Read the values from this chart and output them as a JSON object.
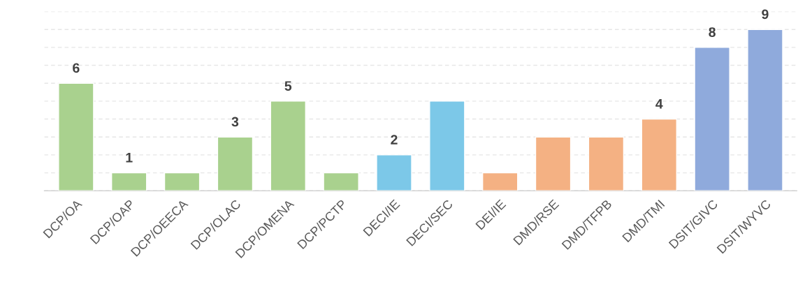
{
  "chart_data": {
    "type": "bar",
    "categories": [
      "DCP/OA",
      "DCP/OAP",
      "DCP/OEECA",
      "DCP/OLAC",
      "DCP/OMENA",
      "DCP/PCTP",
      "DECI/IE",
      "DECI/SEC",
      "DEI/IE",
      "DMD/RSE",
      "DMD/TFPB",
      "DMD/TMI",
      "DSIT/GIVC",
      "DSIT/WYVC"
    ],
    "values": [
      6,
      1,
      1,
      3,
      5,
      1,
      2,
      5,
      1,
      3,
      3,
      4,
      8,
      9
    ],
    "value_labels": [
      "6",
      "1",
      null,
      "3",
      "5",
      null,
      "2",
      null,
      null,
      null,
      null,
      "4",
      "8",
      "9"
    ],
    "colors": [
      "#a9d18e",
      "#a9d18e",
      "#a9d18e",
      "#a9d18e",
      "#a9d18e",
      "#a9d18e",
      "#7cc8e8",
      "#7cc8e8",
      "#f4b183",
      "#f4b183",
      "#f4b183",
      "#f4b183",
      "#8faadc",
      "#8faadc"
    ],
    "ylim": [
      0,
      10
    ],
    "yticks": [
      {
        "value": 0,
        "label": null
      },
      {
        "value": 1,
        "label": null
      },
      {
        "value": 2,
        "label": null
      },
      {
        "value": 3,
        "label": null
      },
      {
        "value": 4,
        "label": null
      },
      {
        "value": 5,
        "label": null
      },
      {
        "value": 6,
        "label": null
      },
      {
        "value": 7,
        "label": null
      },
      {
        "value": 8,
        "label": null
      },
      {
        "value": 9,
        "label": null
      },
      {
        "value": 10,
        "label": null
      }
    ],
    "grid": "y",
    "tick_labels": "x"
  }
}
